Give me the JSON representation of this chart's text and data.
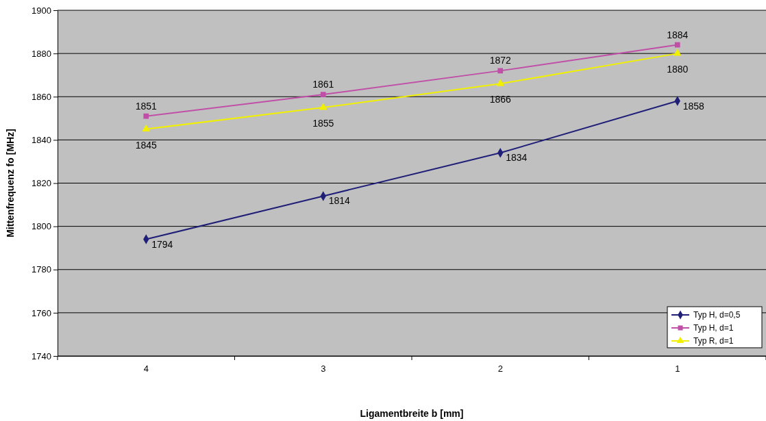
{
  "chart_data": {
    "type": "line",
    "xlabel": "Ligamentbreite b [mm]",
    "ylabel": "Mittenfrequenz fo [MHz]",
    "categories": [
      "4",
      "3",
      "2",
      "1"
    ],
    "ylim": [
      1740,
      1900
    ],
    "yticks": [
      1740,
      1760,
      1780,
      1800,
      1820,
      1840,
      1860,
      1880,
      1900
    ],
    "grid": "y",
    "legend": "bottom right",
    "data_labels": true,
    "series": [
      {
        "name": "Typ H, d=0,5",
        "color": "#1f1f78",
        "marker": "diamond",
        "values": [
          1794,
          1814,
          1834,
          1858
        ]
      },
      {
        "name": "Typ H, d=1",
        "color": "#c04fa8",
        "marker": "square",
        "values": [
          1851,
          1861,
          1872,
          1884
        ]
      },
      {
        "name": "Typ R, d=1",
        "color": "#f0f000",
        "marker": "triangle",
        "values": [
          1845,
          1855,
          1866,
          1880
        ]
      }
    ]
  }
}
